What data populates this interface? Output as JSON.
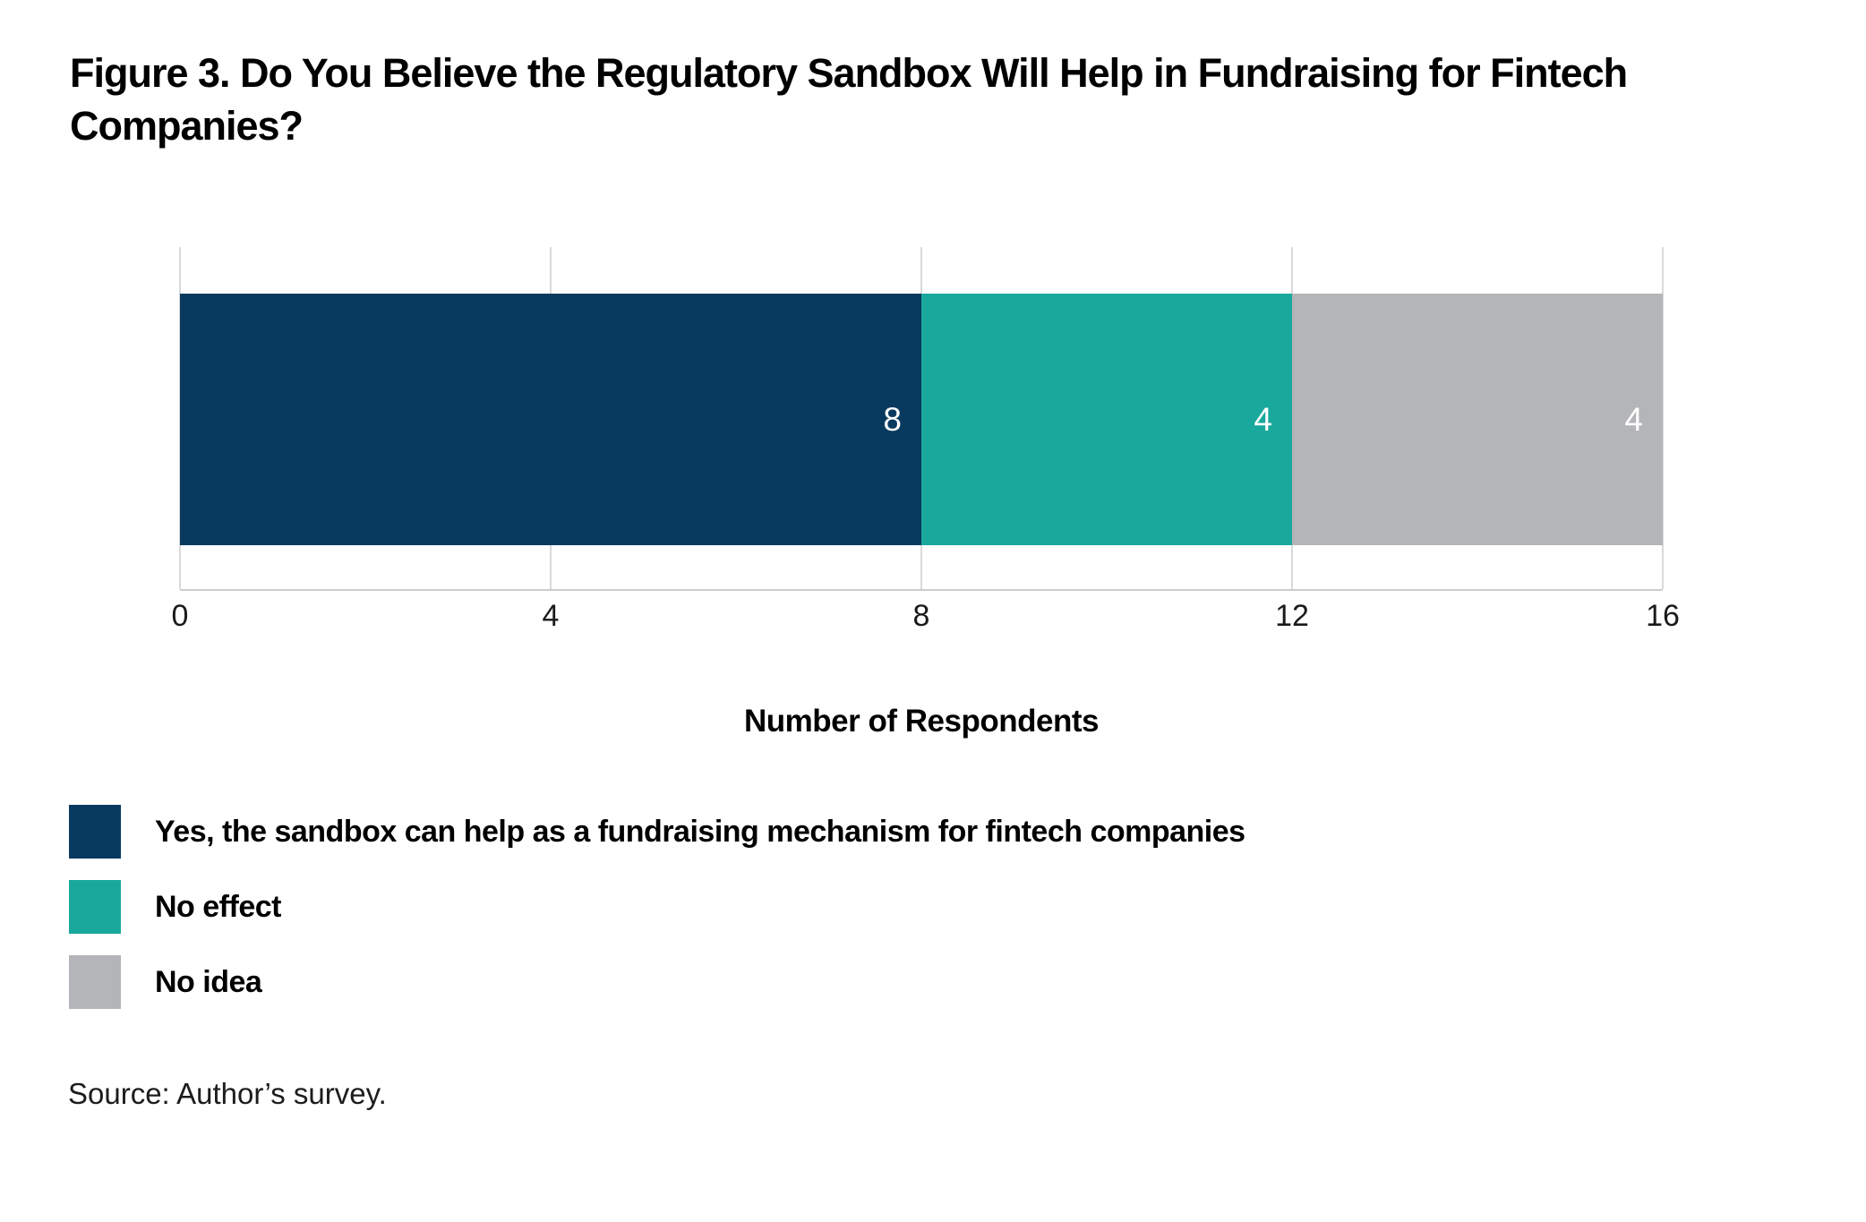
{
  "title": "Figure 3. Do You Believe the Regulatory Sandbox Will Help in Fundraising for Fintech Companies?",
  "source": "Source: Author’s survey.",
  "colors": {
    "background": "#ffffff",
    "grid": "#d9d9d9",
    "axis_line": "#cccccc",
    "value_label": "#ffffff",
    "text": "#000000"
  },
  "chart_data": {
    "type": "bar",
    "orientation": "horizontal-stacked",
    "categories": [
      "Respondents"
    ],
    "series": [
      {
        "name": "Yes, the sandbox can help as a fundraising mechanism for fintech companies",
        "values": [
          8
        ],
        "color": "#083a5f"
      },
      {
        "name": "No effect",
        "values": [
          4
        ],
        "color": "#18a89c"
      },
      {
        "name": "No idea",
        "values": [
          4
        ],
        "color": "#b4b5b8"
      }
    ],
    "value_labels": [
      8,
      4,
      4
    ],
    "xlabel": "Number of Respondents",
    "xlim": [
      0,
      16
    ],
    "xticks": [
      0,
      4,
      8,
      12,
      16
    ],
    "grid": true,
    "legend_position": "bottom-left"
  }
}
